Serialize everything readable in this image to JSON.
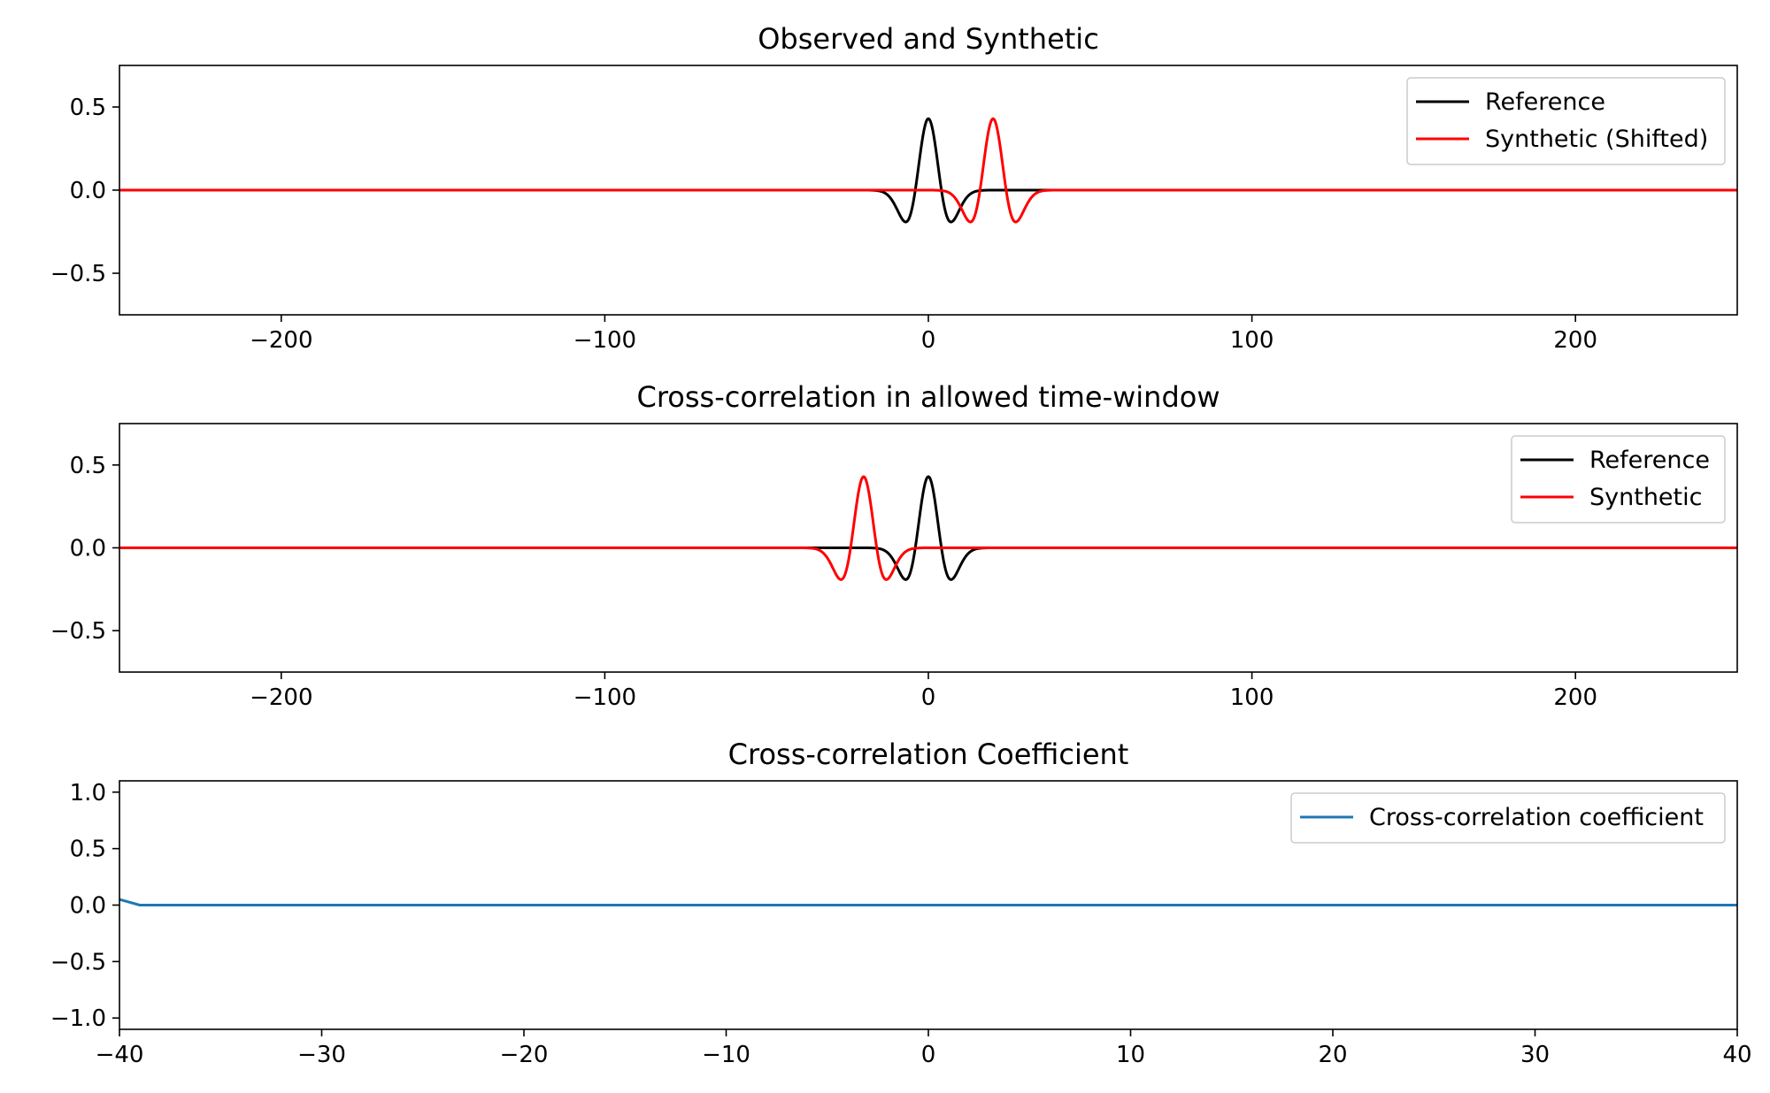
{
  "chart_data": [
    {
      "type": "line",
      "title": "Observed and Synthetic",
      "xlim": [
        -250,
        250
      ],
      "ylim": [
        -0.75,
        0.75
      ],
      "xticks": [
        -200,
        -100,
        0,
        100,
        200
      ],
      "xtick_labels": [
        "−200",
        "−100",
        "0",
        "100",
        "200"
      ],
      "yticks": [
        0.5,
        0.0,
        -0.5
      ],
      "ytick_labels": [
        "0.5",
        "0.0",
        "−0.5"
      ],
      "legend_position": "top-right",
      "series": [
        {
          "name": "Reference",
          "color": "#000000",
          "waveform": "ricker",
          "peak_time": 0,
          "peak_amplitude": 0.43,
          "trough_amplitude": -0.19,
          "trough_offset": 7
        },
        {
          "name": "Synthetic (Shifted)",
          "color": "#ff0000",
          "waveform": "ricker",
          "peak_time": 20,
          "peak_amplitude": 0.43,
          "trough_amplitude": -0.19,
          "trough_offset": 7
        }
      ]
    },
    {
      "type": "line",
      "title": "Cross-correlation in allowed time-window",
      "xlim": [
        -250,
        250
      ],
      "ylim": [
        -0.75,
        0.75
      ],
      "xticks": [
        -200,
        -100,
        0,
        100,
        200
      ],
      "xtick_labels": [
        "−200",
        "−100",
        "0",
        "100",
        "200"
      ],
      "yticks": [
        0.5,
        0.0,
        -0.5
      ],
      "ytick_labels": [
        "0.5",
        "0.0",
        "−0.5"
      ],
      "legend_position": "top-right",
      "series": [
        {
          "name": "Reference",
          "color": "#000000",
          "waveform": "ricker",
          "peak_time": 0,
          "peak_amplitude": 0.43,
          "trough_amplitude": -0.19,
          "trough_offset": 7
        },
        {
          "name": "Synthetic",
          "color": "#ff0000",
          "waveform": "ricker",
          "peak_time": -20,
          "peak_amplitude": 0.43,
          "trough_amplitude": -0.19,
          "trough_offset": 7
        }
      ]
    },
    {
      "type": "line",
      "title": "Cross-correlation Coefficient",
      "xlim": [
        -40,
        40
      ],
      "ylim": [
        -1.1,
        1.1
      ],
      "xticks": [
        -40,
        -30,
        -20,
        -10,
        0,
        10,
        20,
        30,
        40
      ],
      "xtick_labels": [
        "−40",
        "−30",
        "−20",
        "−10",
        "0",
        "10",
        "20",
        "30",
        "40"
      ],
      "yticks": [
        1.0,
        0.5,
        0.0,
        -0.5,
        -1.0
      ],
      "ytick_labels": [
        "1.0",
        "0.5",
        "0.0",
        "−0.5",
        "−1.0"
      ],
      "legend_position": "top-right",
      "series": [
        {
          "name": "Cross-correlation coefficient",
          "color": "#1f77b4",
          "x": [
            -40,
            -39,
            -38,
            -37,
            -36,
            -35,
            -34,
            -33,
            -32,
            -31,
            -30,
            -29,
            -28,
            -27,
            -26,
            -25,
            -24,
            -23,
            -22,
            -21,
            -20,
            -19,
            -18,
            -17,
            -16,
            -15,
            -14,
            -13,
            -12,
            -11,
            -10,
            -9,
            -8,
            -7,
            -6,
            -5,
            -4,
            -3,
            -2,
            -1,
            0,
            1,
            2,
            3,
            4,
            5,
            6,
            7,
            8,
            9,
            10,
            11,
            12,
            13,
            14,
            15,
            16,
            17,
            18,
            19,
            20,
            21,
            22,
            23,
            24,
            25,
            26,
            27,
            28,
            29,
            30,
            31,
            32,
            33,
            34,
            35,
            36,
            37,
            38,
            39,
            40
          ],
          "y": [
            0.05,
            0.0,
            0.0,
            0.0,
            0.0,
            0.0,
            0.0,
            0.0,
            0.0,
            0.0,
            0.0,
            0.0,
            0.0,
            0.0,
            0.0,
            0.0,
            0.0,
            0.0,
            0.0,
            0.0,
            0.0,
            0.0,
            0.0,
            0.0,
            0.0,
            0.0,
            0.0,
            0.0,
            0.0,
            0.0,
            0.0,
            0.0,
            0.0,
            0.0,
            0.0,
            0.0,
            0.0,
            0.0,
            0.0,
            0.0,
            0.0,
            0.0,
            0.0,
            0.0,
            0.0,
            0.0,
            0.0,
            0.0,
            0.0,
            0.0,
            0.0,
            0.0,
            0.0,
            0.0,
            0.0,
            0.0,
            0.0,
            0.0,
            0.0,
            0.0,
            0.0,
            0.0,
            0.0,
            0.0,
            0.0,
            0.0,
            0.0,
            0.0,
            0.0,
            0.0,
            0.0,
            0.0,
            0.0,
            0.0,
            0.0,
            0.0,
            0.0,
            0.0,
            0.0,
            0.0,
            0.0
          ]
        }
      ]
    }
  ]
}
